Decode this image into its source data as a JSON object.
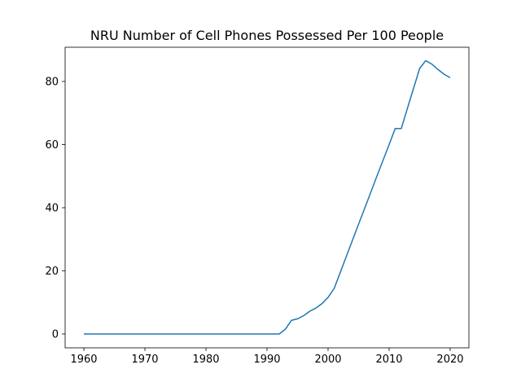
{
  "chart_data": {
    "type": "line",
    "title": "NRU Number of Cell Phones Possessed Per 100 People",
    "x": [
      1960,
      1961,
      1962,
      1963,
      1964,
      1965,
      1966,
      1967,
      1968,
      1969,
      1970,
      1971,
      1972,
      1973,
      1974,
      1975,
      1976,
      1977,
      1978,
      1979,
      1980,
      1981,
      1982,
      1983,
      1984,
      1985,
      1986,
      1987,
      1988,
      1989,
      1990,
      1991,
      1992,
      1993,
      1994,
      1995,
      1996,
      1997,
      1998,
      1999,
      2000,
      2001,
      2002,
      2003,
      2004,
      2005,
      2006,
      2007,
      2008,
      2009,
      2010,
      2011,
      2012,
      2013,
      2014,
      2015,
      2016,
      2017,
      2018,
      2019,
      2020
    ],
    "series": [
      {
        "color": "#1f77b4",
        "values": [
          0,
          0,
          0,
          0,
          0,
          0,
          0,
          0,
          0,
          0,
          0,
          0,
          0,
          0,
          0,
          0,
          0,
          0,
          0,
          0,
          0,
          0,
          0,
          0,
          0,
          0,
          0,
          0,
          0,
          0,
          0,
          0,
          0,
          1.5,
          4.3,
          4.8,
          5.8,
          7.2,
          8.2,
          9.6,
          11.6,
          14.4,
          19.5,
          24.6,
          29.7,
          34.8,
          39.8,
          44.9,
          50,
          55,
          60,
          65.1,
          65.1,
          71.5,
          77.8,
          84.1,
          86.6,
          85.5,
          83.8,
          82.3,
          81.2
        ]
      }
    ],
    "xlim": [
      1956.93,
      2023.07
    ],
    "xticks": [
      1960,
      1970,
      1980,
      1990,
      2000,
      2010,
      2020
    ],
    "ylim": [
      -4.39,
      90.84
    ],
    "yticks": [
      0,
      20,
      40,
      60,
      80
    ]
  }
}
